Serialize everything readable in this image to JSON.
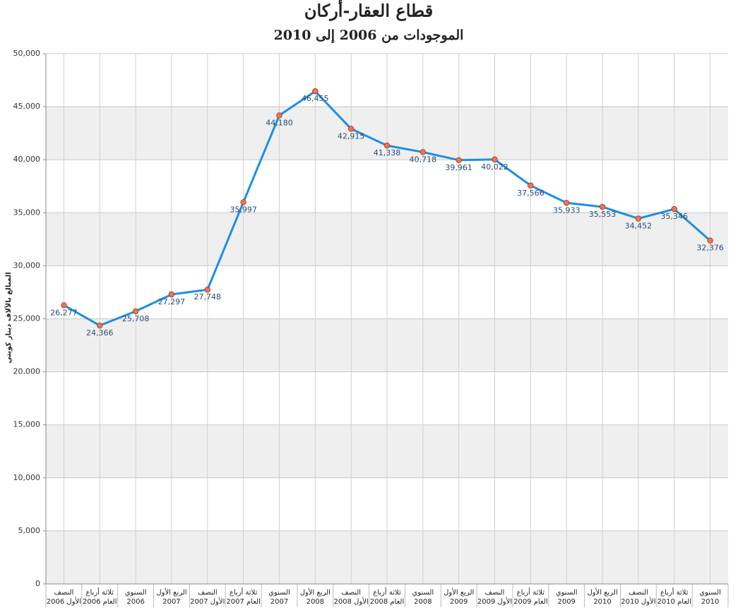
{
  "chart_data": {
    "type": "line",
    "title": "قطاع العقار-أركان",
    "subtitle": "الموجودات من 2006 إلى 2010",
    "y_label": "المبالغ بالآلاف دينار كويتي",
    "categories": [
      [
        "النصف",
        "الأول 2006"
      ],
      [
        "ثلاثة أرباع",
        "العام 2006"
      ],
      [
        "السنوي",
        "2006"
      ],
      [
        "الربع الأول",
        "2007"
      ],
      [
        "النصف",
        "الأول 2007"
      ],
      [
        "ثلاثة أرباع",
        "العام 2007"
      ],
      [
        "السنوي",
        "2007"
      ],
      [
        "الربع الأول",
        "2008"
      ],
      [
        "النصف",
        "الأول 2008"
      ],
      [
        "ثلاثة أرباع",
        "العام 2008"
      ],
      [
        "السنوي",
        "2008"
      ],
      [
        "الربع الأول",
        "2009"
      ],
      [
        "النصف",
        "الأول 2009"
      ],
      [
        "ثلاثة أرباع",
        "العام 2009"
      ],
      [
        "السنوي",
        "2009"
      ],
      [
        "الربع الأول",
        "2010"
      ],
      [
        "النصف",
        "الأول 2010"
      ],
      [
        "ثلاثة أرباع",
        "العام 2010"
      ],
      [
        "السنوي",
        "2010"
      ]
    ],
    "series": [
      {
        "color": "#1b8fe6",
        "marker_color": "#f07350",
        "values": [
          26277,
          24366,
          25708,
          27297,
          27748,
          35997,
          44180,
          46455,
          42915,
          41338,
          40718,
          39961,
          40022,
          37566,
          35933,
          35553,
          34452,
          35346,
          32376
        ],
        "value_labels": [
          "26,277",
          "24,366",
          "25,708",
          "27,297",
          "27,748",
          "35,997",
          "44,180",
          "46,455",
          "42,915",
          "41,338",
          "40,718",
          "39,961",
          "40,022",
          "37,566",
          "35,933",
          "35,553",
          "34,452",
          "35,346",
          "32,376"
        ]
      }
    ],
    "ylim": [
      0,
      50000
    ],
    "yticks": [
      0,
      {
        "value": 5000,
        "label": "5,000"
      },
      {
        "value": 10000,
        "label": "10,000"
      },
      {
        "value": 15000,
        "label": "15,000"
      },
      {
        "value": 20000,
        "label": "20,000"
      },
      {
        "value": 25000,
        "label": "25,000"
      },
      {
        "value": 30000,
        "label": "30,000"
      },
      {
        "value": 35000,
        "label": "35,000"
      },
      {
        "value": 40000,
        "label": "40,000"
      },
      {
        "value": 45000,
        "label": "45,000"
      },
      {
        "value": 50000,
        "label": "50,000"
      }
    ],
    "grid": true
  }
}
